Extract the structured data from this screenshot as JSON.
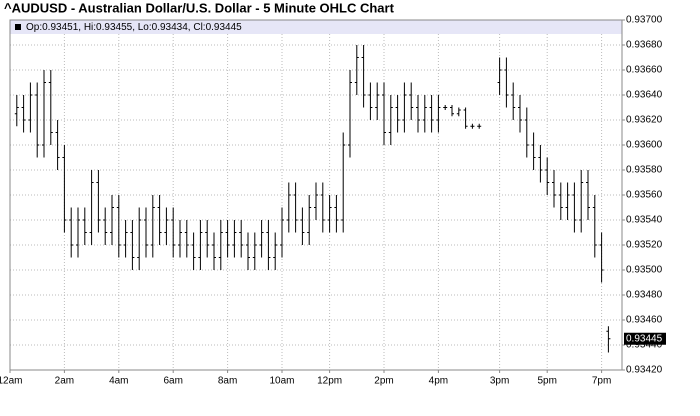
{
  "chart_data": {
    "type": "ohlc",
    "title": "^AUDUSD - Australian Dollar/U.S. Dollar - 5 Minute OHLC Chart",
    "legend_text": "Op:0.93451, Hi:0.93455, Lo:0.93434, Cl:0.93445",
    "grid": true,
    "xlim": [
      0,
      90
    ],
    "xticks": [
      {
        "value": 0,
        "label": "12am"
      },
      {
        "value": 8,
        "label": "2am"
      },
      {
        "value": 16,
        "label": "4am"
      },
      {
        "value": 24,
        "label": "6am"
      },
      {
        "value": 32,
        "label": "8am"
      },
      {
        "value": 40,
        "label": "10am"
      },
      {
        "value": 47,
        "label": "12pm"
      },
      {
        "value": 55,
        "label": "2pm"
      },
      {
        "value": 63,
        "label": "4pm"
      },
      {
        "value": 72,
        "label": "3pm"
      },
      {
        "value": 79,
        "label": "5pm"
      },
      {
        "value": 87,
        "label": "7pm"
      }
    ],
    "ylim": [
      0.9342,
      0.937
    ],
    "yticks": [
      {
        "value": 0.9342,
        "label": "0.93420"
      },
      {
        "value": 0.9344,
        "label": "0.93440"
      },
      {
        "value": 0.9346,
        "label": "0.93460"
      },
      {
        "value": 0.9348,
        "label": "0.93480"
      },
      {
        "value": 0.935,
        "label": "0.93500"
      },
      {
        "value": 0.9352,
        "label": "0.93520"
      },
      {
        "value": 0.9354,
        "label": "0.93540"
      },
      {
        "value": 0.9356,
        "label": "0.93560"
      },
      {
        "value": 0.9358,
        "label": "0.93580"
      },
      {
        "value": 0.936,
        "label": "0.93600"
      },
      {
        "value": 0.9362,
        "label": "0.93620"
      },
      {
        "value": 0.9364,
        "label": "0.93640"
      },
      {
        "value": 0.9366,
        "label": "0.93660"
      },
      {
        "value": 0.9368,
        "label": "0.93680"
      },
      {
        "value": 0.937,
        "label": "0.93700"
      }
    ],
    "series": [
      {
        "color": "#000000",
        "x": [
          1,
          2,
          3,
          4,
          5,
          6,
          7,
          8,
          9,
          10,
          11,
          12,
          13,
          14,
          15,
          16,
          17,
          18,
          19,
          20,
          21,
          22,
          23,
          24,
          25,
          26,
          27,
          28,
          29,
          30,
          31,
          32,
          33,
          34,
          35,
          36,
          37,
          38,
          39,
          40,
          41,
          42,
          43,
          44,
          45,
          46,
          47,
          48,
          49,
          50,
          51,
          52,
          53,
          54,
          55,
          56,
          57,
          58,
          59,
          60,
          61,
          62,
          63,
          64,
          65,
          66,
          67,
          68,
          69,
          72,
          73,
          74,
          75,
          76,
          77,
          78,
          79,
          80,
          81,
          82,
          83,
          84,
          85,
          86,
          87,
          88
        ],
        "open": [
          0.93625,
          0.9363,
          0.9362,
          0.9364,
          0.936,
          0.9365,
          0.9361,
          0.9359,
          0.9354,
          0.9352,
          0.9354,
          0.9353,
          0.9357,
          0.9354,
          0.9353,
          0.9355,
          0.9352,
          0.9353,
          0.9351,
          0.9354,
          0.9352,
          0.9355,
          0.9353,
          0.9354,
          0.9352,
          0.9353,
          0.9352,
          0.9351,
          0.9353,
          0.9352,
          0.9351,
          0.9353,
          0.9352,
          0.9353,
          0.9352,
          0.9351,
          0.9352,
          0.9353,
          0.9351,
          0.9352,
          0.9354,
          0.9356,
          0.9354,
          0.9353,
          0.9355,
          0.9356,
          0.9354,
          0.9355,
          0.9354,
          0.936,
          0.9365,
          0.9367,
          0.9364,
          0.9363,
          0.9364,
          0.9361,
          0.9363,
          0.9362,
          0.9364,
          0.9363,
          0.9362,
          0.9363,
          0.9362,
          0.9363,
          0.9363,
          0.93625,
          0.93628,
          0.93615,
          0.93615,
          0.9365,
          0.9366,
          0.9364,
          0.9363,
          0.9362,
          0.936,
          0.9359,
          0.9358,
          0.9357,
          0.9356,
          0.9355,
          0.9356,
          0.9354,
          0.9357,
          0.9355,
          0.9352,
          0.93451
        ],
        "high": [
          0.9364,
          0.9364,
          0.9365,
          0.9365,
          0.9366,
          0.9366,
          0.9362,
          0.936,
          0.9355,
          0.9355,
          0.9355,
          0.9358,
          0.9358,
          0.9355,
          0.9356,
          0.9356,
          0.9354,
          0.9354,
          0.9355,
          0.9355,
          0.9356,
          0.9356,
          0.9355,
          0.9355,
          0.9354,
          0.9354,
          0.9353,
          0.9354,
          0.9354,
          0.9353,
          0.9354,
          0.9354,
          0.9354,
          0.9354,
          0.9353,
          0.9353,
          0.9354,
          0.9354,
          0.9353,
          0.9355,
          0.9357,
          0.9357,
          0.9355,
          0.9356,
          0.9357,
          0.9357,
          0.9356,
          0.9356,
          0.9361,
          0.9366,
          0.9368,
          0.9368,
          0.9365,
          0.9365,
          0.9365,
          0.9364,
          0.9364,
          0.9365,
          0.9365,
          0.9364,
          0.9364,
          0.9364,
          0.9364,
          0.93632,
          0.93632,
          0.9363,
          0.9363,
          0.93617,
          0.93617,
          0.9367,
          0.9367,
          0.9365,
          0.9364,
          0.9363,
          0.9361,
          0.936,
          0.9359,
          0.9358,
          0.9357,
          0.9357,
          0.9357,
          0.9358,
          0.9358,
          0.9356,
          0.9353,
          0.93455
        ],
        "low": [
          0.93615,
          0.9361,
          0.9361,
          0.9359,
          0.9359,
          0.936,
          0.9358,
          0.9353,
          0.9351,
          0.9351,
          0.9352,
          0.9352,
          0.9353,
          0.9352,
          0.9352,
          0.9351,
          0.9351,
          0.935,
          0.935,
          0.9351,
          0.9351,
          0.9352,
          0.9352,
          0.9351,
          0.9351,
          0.9351,
          0.935,
          0.935,
          0.9351,
          0.935,
          0.935,
          0.9351,
          0.9351,
          0.9351,
          0.935,
          0.935,
          0.9351,
          0.935,
          0.935,
          0.9351,
          0.9353,
          0.9353,
          0.9352,
          0.9352,
          0.9354,
          0.9353,
          0.9353,
          0.9353,
          0.9353,
          0.9359,
          0.9364,
          0.9363,
          0.9362,
          0.9362,
          0.936,
          0.936,
          0.9361,
          0.9361,
          0.9362,
          0.9361,
          0.9361,
          0.9361,
          0.9361,
          0.93628,
          0.93623,
          0.93623,
          0.93613,
          0.93613,
          0.93613,
          0.9364,
          0.9363,
          0.9362,
          0.9361,
          0.9359,
          0.9358,
          0.9357,
          0.9356,
          0.9355,
          0.9354,
          0.9354,
          0.9353,
          0.9353,
          0.9354,
          0.9351,
          0.9349,
          0.93434
        ],
        "close": [
          0.9363,
          0.9362,
          0.9364,
          0.936,
          0.9365,
          0.9361,
          0.9359,
          0.9354,
          0.9352,
          0.9354,
          0.9353,
          0.9357,
          0.9354,
          0.9353,
          0.9355,
          0.9352,
          0.9353,
          0.9351,
          0.9354,
          0.9352,
          0.9355,
          0.9353,
          0.9354,
          0.9352,
          0.9353,
          0.9352,
          0.9351,
          0.9353,
          0.9352,
          0.9351,
          0.9353,
          0.9352,
          0.9353,
          0.9352,
          0.9351,
          0.9352,
          0.9353,
          0.9351,
          0.9352,
          0.9354,
          0.9356,
          0.9354,
          0.9353,
          0.9355,
          0.9356,
          0.9354,
          0.9355,
          0.9354,
          0.936,
          0.9365,
          0.9367,
          0.9364,
          0.9363,
          0.9364,
          0.9361,
          0.9363,
          0.9362,
          0.9364,
          0.9363,
          0.9362,
          0.9363,
          0.9362,
          0.9363,
          0.9363,
          0.93625,
          0.93628,
          0.93615,
          0.93615,
          0.93615,
          0.9366,
          0.9364,
          0.9363,
          0.9362,
          0.936,
          0.9359,
          0.9358,
          0.9357,
          0.9356,
          0.9355,
          0.9356,
          0.9354,
          0.9357,
          0.9355,
          0.9352,
          0.935,
          0.93445
        ]
      }
    ]
  }
}
